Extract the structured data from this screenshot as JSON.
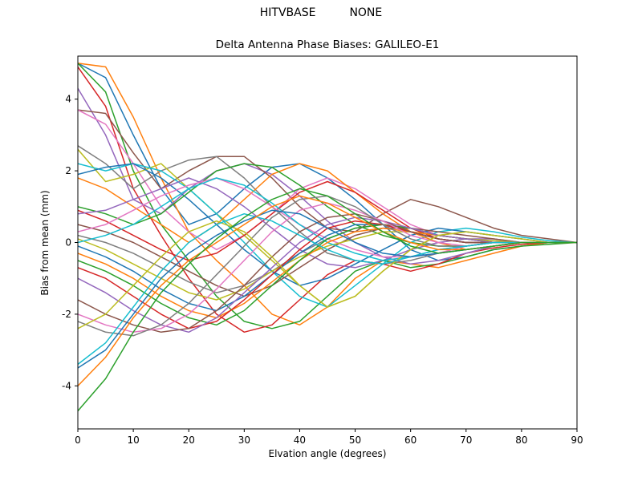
{
  "header": {
    "title_left": "HITVBASE",
    "title_right": "NONE"
  },
  "chart_data": {
    "type": "line",
    "title": "HITVBASE        NONE",
    "subtitle": "Delta Antenna Phase Biases: GALILEO-E1",
    "xlabel": "Elvation angle (degrees)",
    "ylabel": "Bias from mean (mm)",
    "xlim": [
      0,
      90
    ],
    "ylim": [
      -5.2,
      5.2
    ],
    "xticks": [
      0,
      10,
      20,
      30,
      40,
      50,
      60,
      70,
      80,
      90
    ],
    "yticks": [
      -4,
      -2,
      0,
      2,
      4
    ],
    "grid": false,
    "legend": null,
    "line_width": 1.5,
    "axis_color": "#000000",
    "palette": [
      "#1f77b4",
      "#ff7f0e",
      "#2ca02c",
      "#d62728",
      "#9467bd",
      "#8c564b",
      "#e377c2",
      "#7f7f7f",
      "#bcbd22",
      "#17becf"
    ],
    "x": [
      0,
      5,
      10,
      15,
      20,
      25,
      30,
      35,
      40,
      45,
      50,
      55,
      60,
      65,
      70,
      75,
      80,
      85,
      90
    ],
    "series": [
      {
        "name": "line-01",
        "values": [
          5.0,
          4.6,
          3.0,
          1.5,
          0.5,
          0.8,
          1.5,
          2.1,
          2.2,
          1.8,
          1.2,
          0.5,
          -0.2,
          -0.5,
          -0.4,
          -0.2,
          -0.1,
          0,
          0
        ]
      },
      {
        "name": "line-02",
        "values": [
          5.0,
          4.9,
          3.5,
          1.8,
          0.3,
          -0.5,
          -1.2,
          -2.0,
          -2.3,
          -1.8,
          -1.0,
          -0.5,
          -0.6,
          -0.7,
          -0.5,
          -0.3,
          -0.1,
          0,
          0
        ]
      },
      {
        "name": "line-03",
        "values": [
          5.0,
          4.2,
          2.0,
          0.5,
          -0.5,
          -1.5,
          -2.2,
          -2.4,
          -2.2,
          -1.5,
          -0.8,
          -0.5,
          -0.7,
          -0.6,
          -0.4,
          -0.2,
          -0.1,
          -0.05,
          0
        ]
      },
      {
        "name": "line-04",
        "values": [
          4.9,
          3.8,
          1.5,
          0.2,
          -1.0,
          -2.0,
          -2.5,
          -2.3,
          -1.6,
          -0.9,
          -0.5,
          -0.6,
          -0.8,
          -0.6,
          -0.3,
          -0.15,
          -0.05,
          0,
          0
        ]
      },
      {
        "name": "line-05",
        "values": [
          4.3,
          3.0,
          1.2,
          0.8,
          1.5,
          2.0,
          2.2,
          1.9,
          1.3,
          0.6,
          0,
          -0.4,
          -0.6,
          -0.5,
          -0.3,
          -0.1,
          0,
          0,
          0
        ]
      },
      {
        "name": "line-06",
        "values": [
          3.7,
          3.6,
          2.5,
          1.5,
          2.0,
          2.4,
          2.4,
          1.8,
          1.0,
          0.4,
          0.3,
          0.8,
          1.2,
          1.0,
          0.7,
          0.4,
          0.2,
          0.1,
          0
        ]
      },
      {
        "name": "line-07",
        "values": [
          3.7,
          3.3,
          2.2,
          1.0,
          0.3,
          -0.2,
          0.2,
          0.8,
          1.5,
          1.8,
          1.5,
          1.0,
          0.5,
          0.2,
          0.1,
          0.05,
          0,
          0,
          0
        ]
      },
      {
        "name": "line-08",
        "values": [
          2.7,
          2.2,
          1.5,
          2.0,
          2.3,
          2.4,
          1.8,
          1.0,
          0.3,
          -0.3,
          -0.5,
          -0.6,
          -0.5,
          -0.3,
          -0.2,
          -0.1,
          0,
          0,
          0
        ]
      },
      {
        "name": "line-09",
        "values": [
          2.6,
          1.7,
          1.9,
          2.2,
          1.5,
          0.8,
          0.2,
          -0.5,
          -1.2,
          -1.8,
          -1.5,
          -0.8,
          -0.2,
          0.2,
          0.3,
          0.2,
          0.1,
          0,
          0
        ]
      },
      {
        "name": "line-10",
        "values": [
          2.2,
          2.0,
          2.2,
          2.0,
          1.5,
          0.8,
          0,
          -0.8,
          -1.5,
          -1.8,
          -1.2,
          -0.6,
          0,
          0.3,
          0.4,
          0.3,
          0.15,
          0.05,
          0
        ]
      },
      {
        "name": "line-11",
        "values": [
          1.9,
          2.1,
          2.2,
          1.8,
          1.2,
          0.5,
          -0.2,
          -0.8,
          -1.2,
          -1.0,
          -0.6,
          -0.2,
          0.2,
          0.4,
          0.3,
          0.2,
          0.1,
          0,
          0
        ]
      },
      {
        "name": "line-12",
        "values": [
          1.8,
          1.5,
          1.0,
          0.5,
          0,
          0.5,
          1.2,
          1.9,
          2.2,
          2.0,
          1.4,
          0.8,
          0.3,
          0,
          -0.2,
          -0.1,
          0,
          0,
          0
        ]
      },
      {
        "name": "line-13",
        "values": [
          1.0,
          0.8,
          0.5,
          0.8,
          1.4,
          2.0,
          2.2,
          2.1,
          1.6,
          1.0,
          0.5,
          0.2,
          0,
          -0.1,
          -0.1,
          0,
          0,
          0,
          0
        ]
      },
      {
        "name": "line-14",
        "values": [
          0.9,
          0.6,
          0.2,
          -0.2,
          -0.5,
          -0.3,
          0.2,
          0.8,
          1.4,
          1.7,
          1.4,
          0.9,
          0.4,
          0.1,
          0,
          0,
          0,
          0,
          0
        ]
      },
      {
        "name": "line-15",
        "values": [
          0.8,
          0.9,
          1.2,
          1.5,
          1.8,
          1.5,
          1.0,
          0.4,
          -0.2,
          -0.6,
          -0.7,
          -0.5,
          -0.2,
          0,
          0.1,
          0.1,
          0,
          0,
          0
        ]
      },
      {
        "name": "line-16",
        "values": [
          0.5,
          0.3,
          0,
          -0.4,
          -0.8,
          -1.2,
          -1.5,
          -1.2,
          -0.7,
          -0.2,
          0.2,
          0.4,
          0.4,
          0.3,
          0.2,
          0.1,
          0,
          0,
          0
        ]
      },
      {
        "name": "line-17",
        "values": [
          0.3,
          0.5,
          0.9,
          1.3,
          1.6,
          1.8,
          1.5,
          1.0,
          0.5,
          0.1,
          -0.2,
          -0.4,
          -0.4,
          -0.3,
          -0.1,
          0,
          0,
          0,
          0
        ]
      },
      {
        "name": "line-18",
        "values": [
          0.2,
          0,
          -0.3,
          -0.7,
          -1.1,
          -1.4,
          -1.2,
          -0.8,
          -0.3,
          0.1,
          0.4,
          0.5,
          0.4,
          0.2,
          0.1,
          0,
          0,
          0,
          0
        ]
      },
      {
        "name": "line-19",
        "values": [
          0.1,
          -0.2,
          -0.6,
          -1.0,
          -1.4,
          -1.6,
          -1.3,
          -0.8,
          -0.4,
          -0.1,
          0.1,
          0.3,
          0.3,
          0.2,
          0.1,
          0.05,
          0,
          0,
          0
        ]
      },
      {
        "name": "line-20",
        "values": [
          0,
          0.2,
          0.5,
          1.0,
          1.5,
          1.8,
          1.6,
          1.1,
          0.5,
          0,
          -0.3,
          -0.5,
          -0.4,
          -0.2,
          -0.1,
          0,
          0,
          0,
          0
        ]
      },
      {
        "name": "line-21",
        "values": [
          -0.1,
          -0.4,
          -0.8,
          -1.3,
          -1.7,
          -1.9,
          -1.5,
          -0.9,
          -0.3,
          0.2,
          0.5,
          0.5,
          0.3,
          0.1,
          0,
          0,
          0,
          0,
          0
        ]
      },
      {
        "name": "line-22",
        "values": [
          -0.3,
          -0.6,
          -1.0,
          -1.5,
          -1.9,
          -2.1,
          -1.7,
          -1.1,
          -0.5,
          0,
          0.3,
          0.4,
          0.3,
          0.2,
          0.1,
          0,
          0,
          0,
          0
        ]
      },
      {
        "name": "line-23",
        "values": [
          -0.5,
          -0.8,
          -1.2,
          -1.7,
          -2.1,
          -2.3,
          -1.9,
          -1.2,
          -0.5,
          0.1,
          0.4,
          0.5,
          0.4,
          0.2,
          0.1,
          0,
          0,
          0,
          0
        ]
      },
      {
        "name": "line-24",
        "values": [
          -0.7,
          -1.0,
          -1.5,
          -2.0,
          -2.4,
          -2.2,
          -1.6,
          -0.9,
          -0.2,
          0.4,
          0.6,
          0.5,
          0.3,
          0.1,
          0,
          0,
          0,
          0,
          0
        ]
      },
      {
        "name": "line-25",
        "values": [
          -1.0,
          -1.4,
          -1.9,
          -2.3,
          -2.5,
          -2.1,
          -1.4,
          -0.7,
          0,
          0.5,
          0.7,
          0.6,
          0.4,
          0.2,
          0.1,
          0,
          0,
          0,
          0
        ]
      },
      {
        "name": "line-26",
        "values": [
          -1.6,
          -2.0,
          -2.3,
          -2.5,
          -2.4,
          -1.9,
          -1.2,
          -0.4,
          0.3,
          0.7,
          0.8,
          0.6,
          0.3,
          0.1,
          0,
          0,
          0,
          0,
          0
        ]
      },
      {
        "name": "line-27",
        "values": [
          -2.0,
          -2.3,
          -2.5,
          -2.4,
          -2.0,
          -1.3,
          -0.5,
          0.3,
          0.9,
          1.1,
          0.9,
          0.6,
          0.2,
          0,
          -0.1,
          0,
          0,
          0,
          0
        ]
      },
      {
        "name": "line-28",
        "values": [
          -2.2,
          -2.5,
          -2.6,
          -2.3,
          -1.7,
          -0.9,
          -0.1,
          0.7,
          1.2,
          1.3,
          1.0,
          0.5,
          0.1,
          -0.1,
          -0.1,
          0,
          0,
          0,
          0
        ]
      },
      {
        "name": "line-29",
        "values": [
          -2.4,
          -2.0,
          -1.2,
          -0.4,
          0.3,
          0.6,
          0.3,
          -0.4,
          -1.2,
          -1.8,
          -1.5,
          -0.8,
          -0.2,
          0.2,
          0.3,
          0.2,
          0.1,
          0,
          0
        ]
      },
      {
        "name": "line-30",
        "values": [
          -3.4,
          -2.8,
          -1.8,
          -0.8,
          0,
          0.5,
          0.8,
          0.6,
          0.2,
          -0.2,
          -0.5,
          -0.6,
          -0.4,
          -0.2,
          -0.1,
          0,
          0,
          0,
          0
        ]
      },
      {
        "name": "line-31",
        "values": [
          -3.5,
          -3.0,
          -2.0,
          -1.0,
          -0.3,
          0.2,
          0.6,
          0.9,
          0.8,
          0.4,
          0,
          -0.3,
          -0.4,
          -0.3,
          -0.2,
          -0.1,
          0,
          0,
          0
        ]
      },
      {
        "name": "line-32",
        "values": [
          -4.0,
          -3.2,
          -2.1,
          -1.2,
          -0.5,
          0,
          0.5,
          1.0,
          1.3,
          1.1,
          0.7,
          0.3,
          0,
          -0.2,
          -0.2,
          -0.1,
          0,
          0,
          0
        ]
      },
      {
        "name": "line-33",
        "values": [
          -4.7,
          -3.8,
          -2.5,
          -1.4,
          -0.6,
          0.1,
          0.7,
          1.2,
          1.5,
          1.3,
          0.8,
          0.3,
          -0.1,
          -0.3,
          -0.2,
          -0.1,
          0,
          0,
          0
        ]
      }
    ]
  }
}
